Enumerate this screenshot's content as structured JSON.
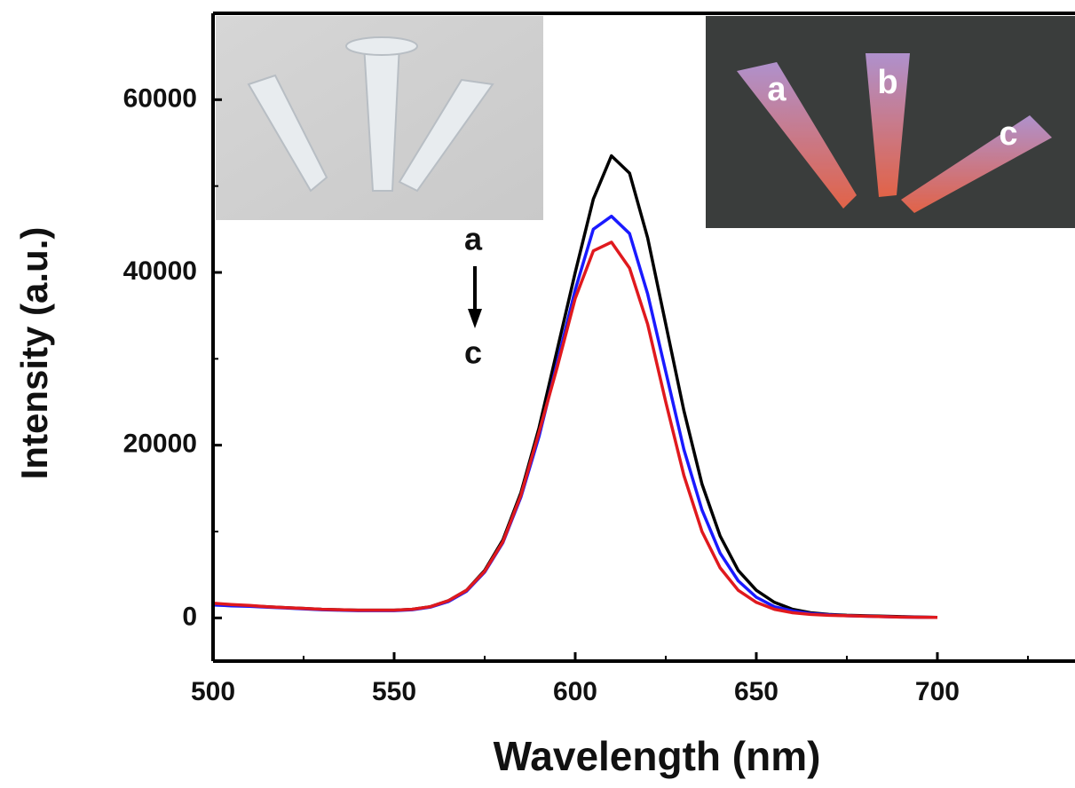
{
  "chart_data": {
    "type": "line",
    "x_label": "Wavelength (nm)",
    "y_label": "Intensity (a.u.)",
    "x": [
      500,
      505,
      510,
      515,
      520,
      525,
      530,
      535,
      540,
      545,
      550,
      555,
      560,
      565,
      570,
      575,
      580,
      585,
      590,
      595,
      600,
      605,
      610,
      615,
      620,
      625,
      630,
      635,
      640,
      645,
      650,
      655,
      660,
      665,
      670,
      675,
      680,
      685,
      690,
      695,
      700
    ],
    "series": [
      {
        "color": "#000000",
        "values": [
          1600,
          1500,
          1400,
          1300,
          1200,
          1100,
          1000,
          950,
          900,
          900,
          900,
          1000,
          1300,
          2000,
          3200,
          5500,
          9000,
          14500,
          22000,
          31000,
          40000,
          48500,
          53500,
          51500,
          44000,
          34000,
          24000,
          15500,
          9500,
          5500,
          3200,
          1800,
          1000,
          600,
          400,
          300,
          250,
          200,
          150,
          100,
          50
        ]
      },
      {
        "color": "#1a1aff",
        "values": [
          1500,
          1400,
          1350,
          1250,
          1150,
          1050,
          950,
          900,
          850,
          850,
          850,
          950,
          1250,
          1900,
          3100,
          5300,
          8700,
          14000,
          21000,
          29500,
          38000,
          45000,
          46500,
          44500,
          37500,
          28500,
          19500,
          12500,
          7500,
          4300,
          2400,
          1300,
          800,
          500,
          350,
          250,
          200,
          150,
          100,
          80,
          50
        ]
      },
      {
        "color": "#e0191e",
        "values": [
          1700,
          1550,
          1450,
          1300,
          1200,
          1100,
          1000,
          950,
          900,
          900,
          900,
          1000,
          1300,
          2000,
          3200,
          5400,
          8800,
          14200,
          21500,
          29000,
          37000,
          42500,
          43500,
          40500,
          34000,
          25000,
          16500,
          10000,
          5800,
          3200,
          1800,
          1000,
          600,
          400,
          300,
          250,
          200,
          150,
          100,
          80,
          50
        ]
      }
    ],
    "xlim": [
      500,
      738
    ],
    "ylim": [
      -5000,
      70000
    ],
    "xticks": [
      500,
      550,
      600,
      650,
      700
    ],
    "yticks": [
      0,
      20000,
      40000,
      60000
    ],
    "x_minor_ticks": [
      525,
      575,
      625,
      675,
      725
    ],
    "y_minor_ticks": [
      10000,
      30000,
      50000
    ],
    "annotations": [
      "a",
      "c"
    ],
    "photo_labels": [
      "a",
      "b",
      "c"
    ]
  }
}
